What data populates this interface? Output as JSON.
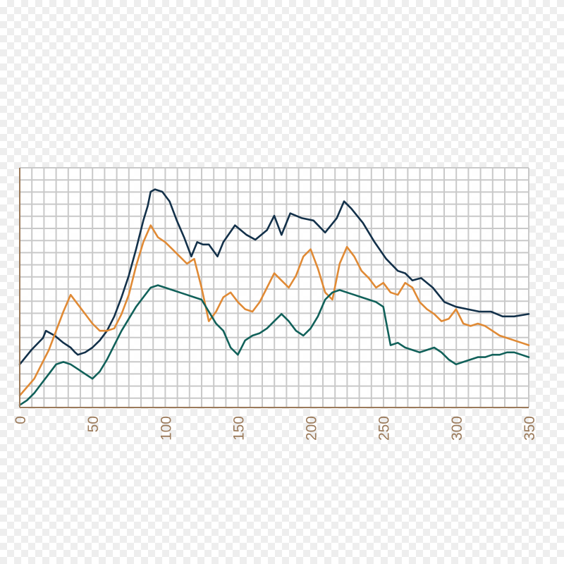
{
  "colors": {
    "axis": "#9b7a5a",
    "grid": "#c9c9c9",
    "series_top": "#13314a",
    "series_middle": "#e08a35",
    "series_bottom": "#11615a",
    "tick_label": "#9b7a5a"
  },
  "chart_data": {
    "type": "line",
    "title": "",
    "xlabel": "",
    "ylabel": "",
    "xlim": [
      0,
      350
    ],
    "ylim": [
      0,
      100
    ],
    "x_ticks": [
      0,
      50,
      100,
      150,
      200,
      250,
      300,
      350
    ],
    "x_tick_labels": [
      "0",
      "50",
      "100",
      "150",
      "200",
      "250",
      "300",
      "350"
    ],
    "y_tick_labels": [],
    "grid": true,
    "legend": "none",
    "series": [
      {
        "color": "#13314a",
        "x": [
          0,
          8,
          16,
          18,
          24,
          30,
          35,
          38,
          40,
          45,
          50,
          55,
          60,
          65,
          70,
          75,
          80,
          85,
          88,
          90,
          93,
          98,
          103,
          108,
          113,
          118,
          122,
          126,
          130,
          136,
          140,
          148,
          156,
          162,
          170,
          175,
          180,
          186,
          194,
          202,
          210,
          218,
          223,
          228,
          236,
          244,
          252,
          260,
          265,
          270,
          276,
          284,
          292,
          300,
          308,
          316,
          324,
          332,
          340,
          350
        ],
        "y": [
          18,
          24,
          29,
          32,
          30,
          27,
          25,
          23,
          22,
          23,
          25,
          28,
          32,
          38,
          46,
          55,
          66,
          78,
          84,
          90,
          91,
          90,
          86,
          78,
          71,
          63,
          69,
          68,
          68,
          63,
          69,
          76,
          72,
          70,
          74,
          80,
          72,
          81,
          79,
          78,
          73,
          79,
          86,
          83,
          77,
          69,
          62,
          57,
          56,
          53,
          54,
          50,
          44,
          42,
          41,
          40,
          40,
          38,
          38,
          39
        ]
      },
      {
        "color": "#e08a35",
        "x": [
          0,
          10,
          20,
          30,
          35,
          40,
          45,
          50,
          55,
          60,
          65,
          70,
          75,
          80,
          85,
          90,
          95,
          100,
          105,
          110,
          115,
          120,
          125,
          130,
          135,
          140,
          145,
          150,
          155,
          160,
          165,
          170,
          175,
          180,
          185,
          190,
          195,
          200,
          205,
          210,
          215,
          220,
          225,
          230,
          235,
          240,
          245,
          250,
          255,
          260,
          265,
          270,
          275,
          280,
          285,
          290,
          295,
          300,
          305,
          310,
          315,
          320,
          325,
          330,
          335,
          340,
          345,
          350
        ],
        "y": [
          5,
          12,
          24,
          40,
          47,
          43,
          39,
          35,
          32,
          32,
          33,
          39,
          47,
          59,
          69,
          76,
          71,
          69,
          66,
          63,
          60,
          62,
          50,
          36,
          40,
          46,
          48,
          44,
          41,
          40,
          44,
          50,
          56,
          53,
          50,
          55,
          63,
          66,
          58,
          48,
          45,
          60,
          67,
          63,
          57,
          54,
          50,
          52,
          48,
          47,
          52,
          50,
          44,
          41,
          39,
          36,
          37,
          41,
          35,
          34,
          35,
          34,
          32,
          30,
          29,
          28,
          27,
          26
        ]
      },
      {
        "color": "#11615a",
        "x": [
          0,
          5,
          10,
          15,
          20,
          25,
          30,
          35,
          40,
          45,
          50,
          55,
          60,
          65,
          70,
          75,
          80,
          85,
          90,
          95,
          100,
          105,
          110,
          115,
          120,
          125,
          130,
          135,
          140,
          145,
          150,
          155,
          160,
          165,
          170,
          175,
          180,
          185,
          190,
          195,
          200,
          205,
          210,
          215,
          220,
          225,
          230,
          235,
          240,
          245,
          250,
          255,
          260,
          265,
          270,
          275,
          280,
          285,
          290,
          295,
          300,
          305,
          310,
          315,
          320,
          325,
          330,
          335,
          340,
          345,
          350
        ],
        "y": [
          1,
          3,
          6,
          10,
          14,
          18,
          19,
          18,
          16,
          14,
          12,
          15,
          20,
          26,
          32,
          37,
          42,
          46,
          50,
          51,
          50,
          49,
          48,
          47,
          46,
          45,
          40,
          35,
          32,
          25,
          22,
          28,
          30,
          31,
          33,
          36,
          39,
          36,
          32,
          30,
          33,
          38,
          45,
          48,
          49,
          48,
          47,
          46,
          45,
          44,
          42,
          26,
          27,
          25,
          24,
          23,
          24,
          25,
          23,
          20,
          18,
          19,
          20,
          21,
          21,
          22,
          22,
          23,
          23,
          22,
          21
        ]
      }
    ]
  }
}
